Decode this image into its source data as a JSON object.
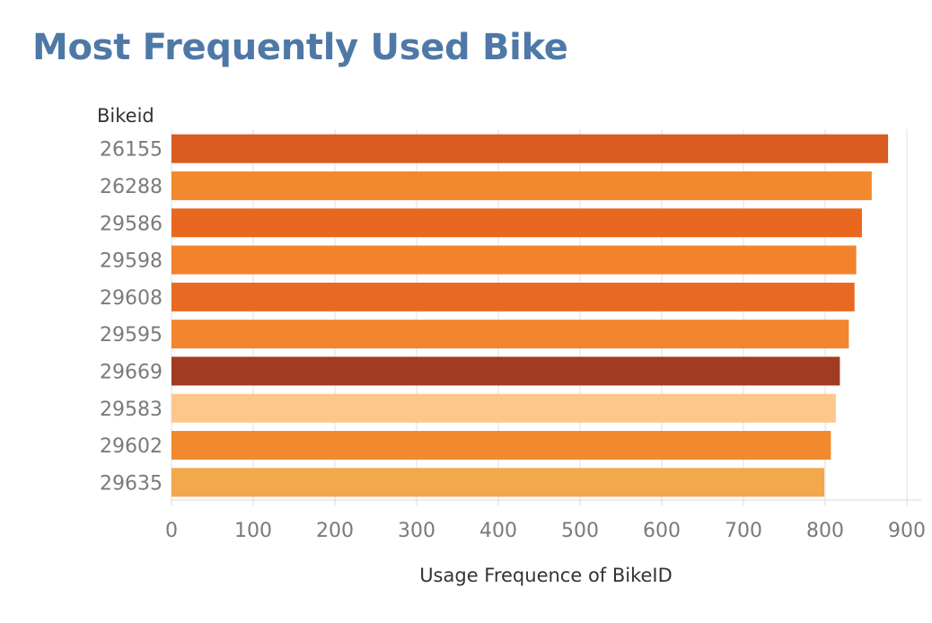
{
  "chart_data": {
    "type": "bar",
    "orientation": "horizontal",
    "title": "Most Frequently Used Bike",
    "xlabel": "Usage Frequence of BikeID",
    "ylabel": "Bikeid",
    "categories": [
      "26155",
      "26288",
      "29586",
      "29598",
      "29608",
      "29595",
      "29669",
      "29583",
      "29602",
      "29635"
    ],
    "values": [
      877,
      857,
      845,
      838,
      836,
      829,
      818,
      813,
      807,
      799
    ],
    "colors": [
      "#d95b22",
      "#f3892f",
      "#e86820",
      "#f3822d",
      "#e86a22",
      "#f3852f",
      "#a03c22",
      "#fdc68a",
      "#f3892f",
      "#f2a84b"
    ],
    "xlim": [
      0,
      900
    ],
    "xticks": [
      0,
      100,
      200,
      300,
      400,
      500,
      600,
      700,
      800,
      900
    ],
    "grid": true
  }
}
